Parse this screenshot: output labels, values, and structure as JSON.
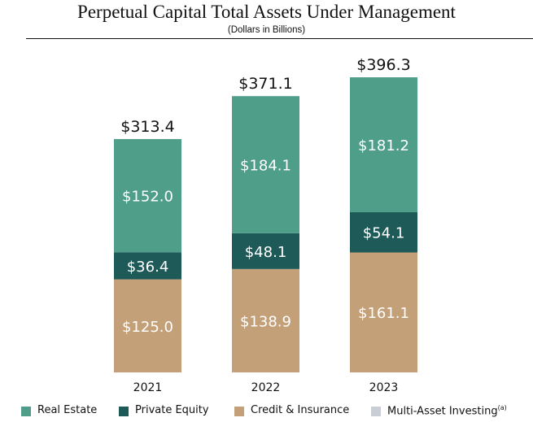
{
  "title": "Perpetual Capital Total Assets Under Management",
  "subtitle": "(Dollars in Billions)",
  "colors": {
    "real_estate": "#4e9e89",
    "private_equity": "#1e5a58",
    "credit_insurance": "#c4a079",
    "multi_asset": "#c9cdd6"
  },
  "legend": [
    {
      "label": "Real Estate",
      "sup": "",
      "color": "#4e9e89"
    },
    {
      "label": "Private Equity",
      "sup": "",
      "color": "#1e5a58"
    },
    {
      "label": "Credit & Insurance",
      "sup": "",
      "color": "#c4a079"
    },
    {
      "label": "Multi-Asset Investing",
      "sup": "(a)",
      "color": "#c9cdd6"
    }
  ],
  "chart_data": {
    "type": "bar",
    "stacked": true,
    "title": "Perpetual Capital Total Assets Under Management",
    "subtitle": "(Dollars in Billions)",
    "categories": [
      "2021",
      "2022",
      "2023"
    ],
    "series": [
      {
        "name": "Credit & Insurance",
        "values": [
          125.0,
          138.9,
          161.1
        ],
        "labels": [
          "$125.0",
          "$138.9",
          "$161.1"
        ],
        "color": "#c4a079"
      },
      {
        "name": "Private Equity",
        "values": [
          36.4,
          48.1,
          54.1
        ],
        "labels": [
          "$36.4",
          "$48.1",
          "$54.1"
        ],
        "color": "#1e5a58"
      },
      {
        "name": "Real Estate",
        "values": [
          152.0,
          184.1,
          181.2
        ],
        "labels": [
          "$152.0",
          "$184.1",
          "$181.2"
        ],
        "color": "#4e9e89"
      },
      {
        "name": "Multi-Asset Investing",
        "values": [
          0,
          0,
          0
        ],
        "labels": [
          "",
          "",
          ""
        ],
        "color": "#c9cdd6"
      }
    ],
    "totals": [
      313.4,
      371.1,
      396.3
    ],
    "total_labels": [
      "$313.4",
      "$371.1",
      "$396.3"
    ],
    "legend_position": "bottom",
    "grid": false
  }
}
